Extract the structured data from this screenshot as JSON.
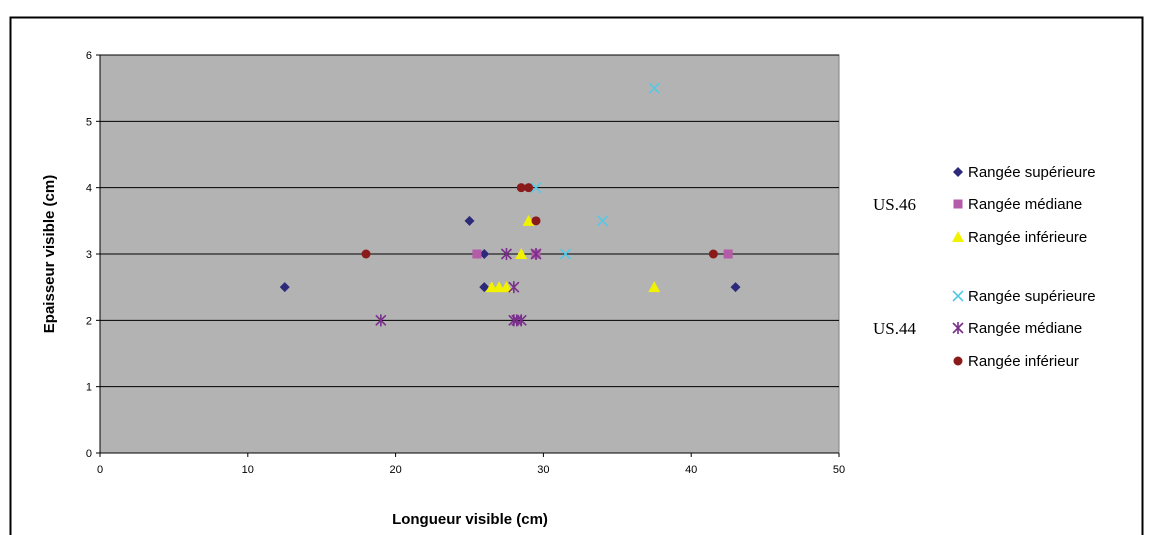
{
  "chart_data": {
    "type": "scatter",
    "title": "",
    "xlabel": "Longueur visible (cm)",
    "ylabel": "Epaisseur visible (cm)",
    "xlim": [
      0,
      50
    ],
    "ylim": [
      0,
      6
    ],
    "xticks": [
      0,
      10,
      20,
      30,
      40,
      50
    ],
    "yticks": [
      0,
      1,
      2,
      3,
      4,
      5,
      6
    ],
    "grid": "horizontal",
    "plot_background": "#B3B3B3",
    "legend_position": "right",
    "legend_groups": [
      {
        "label": "US.46",
        "series": [
          0,
          1,
          2
        ]
      },
      {
        "label": "US.44",
        "series": [
          3,
          4,
          5
        ]
      }
    ],
    "series": [
      {
        "name": "Rangée supérieure",
        "marker": "diamond",
        "color": "#2E2A7A",
        "points": [
          [
            12.5,
            2.5
          ],
          [
            25,
            3.5
          ],
          [
            26,
            3
          ],
          [
            26,
            2.5
          ],
          [
            43,
            2.5
          ]
        ]
      },
      {
        "name": "Rangée médiane",
        "marker": "square",
        "color": "#B45CA8",
        "points": [
          [
            25.5,
            3
          ],
          [
            29.5,
            3
          ],
          [
            42.5,
            3
          ]
        ]
      },
      {
        "name": "Rangée inférieure",
        "marker": "triangle",
        "color": "#F2F200",
        "points": [
          [
            26.5,
            2.5
          ],
          [
            27,
            2.5
          ],
          [
            27.5,
            2.5
          ],
          [
            28.5,
            3
          ],
          [
            29,
            3.5
          ],
          [
            37.5,
            2.5
          ]
        ]
      },
      {
        "name": "Rangée supérieure",
        "marker": "x",
        "color": "#55C8E6",
        "points": [
          [
            37.5,
            5.5
          ],
          [
            29.5,
            4
          ],
          [
            34,
            3.5
          ],
          [
            31.5,
            3
          ]
        ]
      },
      {
        "name": "Rangée médiane",
        "marker": "star",
        "color": "#7A2F8C",
        "points": [
          [
            19,
            2
          ],
          [
            27.5,
            3
          ],
          [
            29.5,
            3
          ],
          [
            28,
            2.5
          ],
          [
            28,
            2
          ],
          [
            28.2,
            2
          ],
          [
            28.5,
            2
          ]
        ]
      },
      {
        "name": "Rangée inférieur",
        "marker": "circle",
        "color": "#8B1A1A",
        "points": [
          [
            18,
            3
          ],
          [
            28.5,
            4
          ],
          [
            29,
            4
          ],
          [
            29.5,
            3.5
          ],
          [
            41.5,
            3
          ]
        ]
      }
    ]
  }
}
